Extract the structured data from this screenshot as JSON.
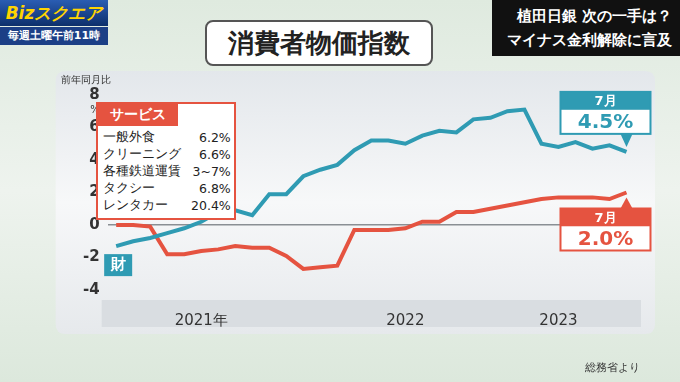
{
  "header": {
    "program": "Bizスクエア",
    "schedule": "毎週土曜午前11時",
    "headline": [
      "植田日銀 次の一手は？",
      "マイナス金利解除に言及"
    ]
  },
  "chart_data": {
    "type": "line",
    "title": "消費者物価指数",
    "y_label": "前年同月比",
    "y_unit": "%",
    "source": "総務省より",
    "categories": [
      null,
      null,
      null,
      null,
      null,
      "2021年",
      null,
      null,
      null,
      null,
      null,
      null,
      null,
      null,
      null,
      null,
      null,
      "2022",
      null,
      null,
      null,
      null,
      null,
      null,
      null,
      null,
      "2023",
      null,
      null,
      null,
      null
    ],
    "series": [
      {
        "name": "財",
        "color": "#2f9bb3",
        "values": [
          -1.3,
          -1.0,
          -0.8,
          -0.5,
          -0.2,
          0.2,
          0.8,
          0.9,
          0.6,
          1.9,
          1.9,
          3.0,
          3.4,
          3.7,
          4.6,
          5.2,
          5.2,
          5.0,
          5.5,
          5.8,
          5.7,
          6.5,
          6.6,
          7.0,
          7.1,
          5.0,
          4.8,
          5.1,
          4.7,
          4.9,
          4.5
        ]
      },
      {
        "name": "サービス",
        "color": "#e55340",
        "values": [
          0.0,
          0.0,
          -0.1,
          -1.8,
          -1.8,
          -1.6,
          -1.5,
          -1.3,
          -1.4,
          -1.4,
          -1.9,
          -2.7,
          -2.6,
          -2.5,
          -0.3,
          -0.3,
          -0.3,
          -0.2,
          0.2,
          0.2,
          0.8,
          0.8,
          1.0,
          1.2,
          1.4,
          1.6,
          1.7,
          1.7,
          1.7,
          1.6,
          2.0
        ]
      }
    ],
    "ylim": [
      -4,
      8
    ],
    "yticks": [
      -4,
      -2,
      0,
      2,
      4,
      6,
      8
    ],
    "annotations": [
      {
        "series": "財",
        "label": "7月",
        "value": 4.5,
        "value_label": "4.5%"
      },
      {
        "series": "サービス",
        "label": "7月",
        "value": 2.0,
        "value_label": "2.0%"
      }
    ],
    "breakdown": {
      "series": "サービス",
      "items": [
        {
          "name": "一般外食",
          "value_label": "6.2%"
        },
        {
          "name": "クリーニング",
          "value_label": "6.6%"
        },
        {
          "name": "各種鉄道運賃",
          "value_label": "3~7%"
        },
        {
          "name": "タクシー",
          "value_label": "6.8%"
        },
        {
          "name": "レンタカー",
          "value_label": "20.4%"
        }
      ]
    }
  }
}
